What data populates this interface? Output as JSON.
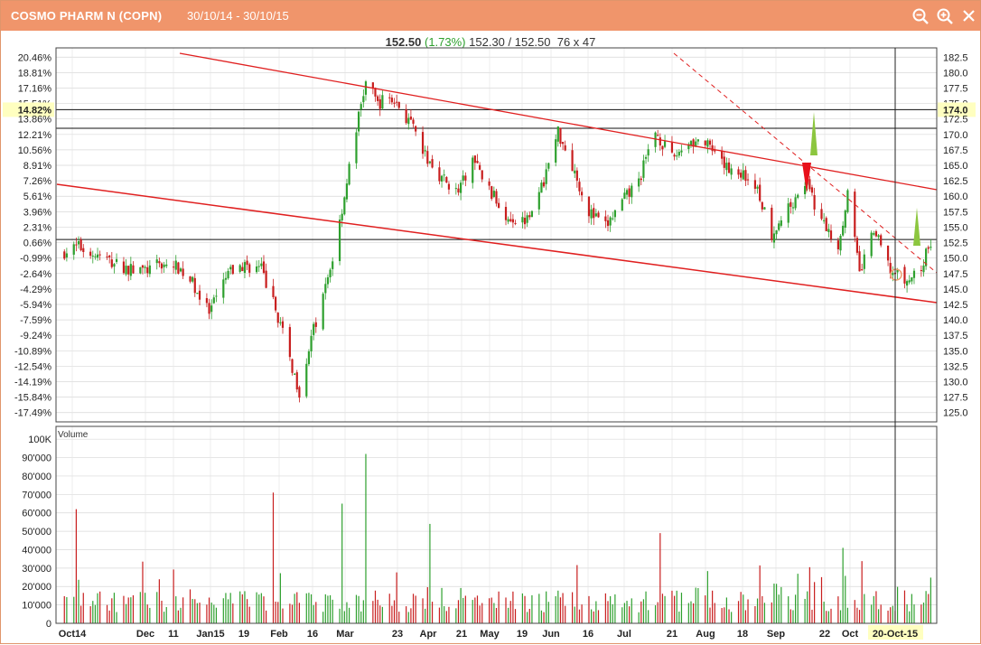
{
  "window": {
    "title": "COSMO PHARM N (COPN)",
    "date_range": "30/10/14 - 30/10/15",
    "toolbar": {
      "zoom_out_icon": "zoom-out-icon",
      "zoom_in_icon": "zoom-in-icon",
      "close_icon": "close-icon"
    }
  },
  "quote": {
    "last": "152.50",
    "change": "(1.73%)",
    "bid_ask": "152.30 / 152.50",
    "size": "76 x 47"
  },
  "colors": {
    "title_bar": "#f0956b",
    "up": "#2ea02e",
    "down": "#c81e1e",
    "trendline": "#e02020",
    "highlight": "#ffffc0"
  },
  "chart_data": [
    {
      "type": "candlestick",
      "y_right_ticks": [
        "182.5",
        "180.0",
        "177.5",
        "175.0",
        "174.0",
        "172.5",
        "170.0",
        "167.5",
        "165.0",
        "162.5",
        "160.0",
        "157.5",
        "155.0",
        "152.5",
        "150.0",
        "147.5",
        "145.0",
        "142.5",
        "140.0",
        "137.5",
        "135.0",
        "132.5",
        "130.0",
        "127.5",
        "125.0"
      ],
      "y_left_ticks": [
        "20.46%",
        "18.81%",
        "17.16%",
        "15.51%",
        "14.82%",
        "13.86%",
        "12.21%",
        "10.56%",
        "8.91%",
        "7.26%",
        "5.61%",
        "3.96%",
        "2.31%",
        "0.66%",
        "-0.99%",
        "-2.64%",
        "-4.29%",
        "-5.94%",
        "-7.59%",
        "-9.24%",
        "-10.89%",
        "-12.54%",
        "-14.19%",
        "-15.84%",
        "-17.49%"
      ],
      "ylim": [
        123.5,
        184
      ],
      "highlighted_price": "174.0",
      "highlighted_pct": "14.82%",
      "horizontal_lines": [
        174.0,
        171.0,
        153.0
      ],
      "x_labels": [
        "Oct14",
        "Dec",
        "11",
        "Jan15",
        "19",
        "Feb",
        "16",
        "Mar",
        "23",
        "Apr",
        "21",
        "May",
        "19",
        "Jun",
        "16",
        "Jul",
        "21",
        "Aug",
        "18",
        "Sep",
        "22",
        "Oct",
        "20-Oct-15"
      ],
      "crosshair_label": "20-Oct-15",
      "price_points": [
        [
          "2014-10-30",
          151.0
        ],
        [
          "2014-11-05",
          151.8
        ],
        [
          "2014-11-12",
          150.5
        ],
        [
          "2014-11-19",
          149.3
        ],
        [
          "2014-11-26",
          148.2
        ],
        [
          "2014-12-03",
          148.0
        ],
        [
          "2014-12-10",
          149.0
        ],
        [
          "2014-12-17",
          148.5
        ],
        [
          "2014-12-23",
          146.0
        ],
        [
          "2014-12-30",
          141.0
        ],
        [
          "2015-01-07",
          147.5
        ],
        [
          "2015-01-14",
          148.8
        ],
        [
          "2015-01-21",
          148.2
        ],
        [
          "2015-01-28",
          140.5
        ],
        [
          "2015-02-02",
          133.5
        ],
        [
          "2015-02-06",
          128.5
        ],
        [
          "2015-02-11",
          137.0
        ],
        [
          "2015-02-16",
          143.5
        ],
        [
          "2015-02-20",
          150.0
        ],
        [
          "2015-02-24",
          158.0
        ],
        [
          "2015-03-02",
          171.0
        ],
        [
          "2015-03-06",
          178.5
        ],
        [
          "2015-03-11",
          175.0
        ],
        [
          "2015-03-16",
          176.0
        ],
        [
          "2015-03-20",
          174.5
        ],
        [
          "2015-03-25",
          171.5
        ],
        [
          "2015-03-31",
          166.5
        ],
        [
          "2015-04-07",
          163.0
        ],
        [
          "2015-04-14",
          160.5
        ],
        [
          "2015-04-20",
          166.0
        ],
        [
          "2015-04-27",
          161.0
        ],
        [
          "2015-05-04",
          157.0
        ],
        [
          "2015-05-11",
          156.0
        ],
        [
          "2015-05-18",
          160.0
        ],
        [
          "2015-05-26",
          170.5
        ],
        [
          "2015-06-01",
          165.0
        ],
        [
          "2015-06-08",
          157.5
        ],
        [
          "2015-06-15",
          155.0
        ],
        [
          "2015-06-22",
          159.0
        ],
        [
          "2015-06-29",
          162.5
        ],
        [
          "2015-07-06",
          170.5
        ],
        [
          "2015-07-13",
          166.0
        ],
        [
          "2015-07-20",
          169.0
        ],
        [
          "2015-07-27",
          168.5
        ],
        [
          "2015-08-03",
          165.0
        ],
        [
          "2015-08-10",
          164.0
        ],
        [
          "2015-08-17",
          162.0
        ],
        [
          "2015-08-24",
          154.0
        ],
        [
          "2015-08-31",
          158.0
        ],
        [
          "2015-09-07",
          162.5
        ],
        [
          "2015-09-14",
          156.0
        ],
        [
          "2015-09-21",
          152.0
        ],
        [
          "2015-09-25",
          160.5
        ],
        [
          "2015-09-30",
          147.5
        ],
        [
          "2015-10-06",
          154.5
        ],
        [
          "2015-10-13",
          148.0
        ],
        [
          "2015-10-20",
          146.0
        ],
        [
          "2015-10-26",
          148.5
        ],
        [
          "2015-10-30",
          152.5
        ]
      ]
    },
    {
      "type": "bar",
      "name": "Volume",
      "y_ticks": [
        "100K",
        "90'000",
        "80'000",
        "70'000",
        "60'000",
        "50'000",
        "40'000",
        "30'000",
        "20'000",
        "10'000",
        "0"
      ],
      "ylim": [
        0,
        105000
      ],
      "peaks": [
        [
          "2014-11-04",
          62000
        ],
        [
          "2015-01-26",
          71000
        ],
        [
          "2015-02-24",
          65000
        ],
        [
          "2015-03-06",
          92000
        ],
        [
          "2015-04-02",
          54000
        ],
        [
          "2015-07-08",
          49000
        ],
        [
          "2015-09-23",
          41000
        ]
      ]
    }
  ]
}
